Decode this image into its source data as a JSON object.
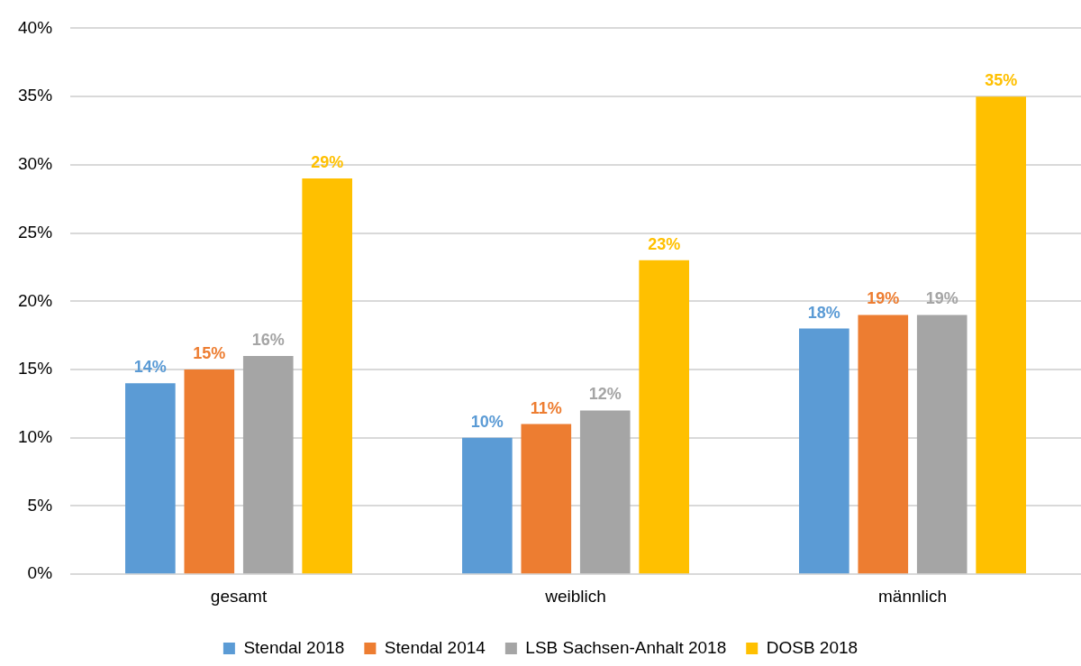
{
  "chart_data": {
    "type": "bar",
    "categories": [
      "gesamt",
      "weiblich",
      "männlich"
    ],
    "series": [
      {
        "name": "Stendal 2018",
        "color": "#5b9bd5",
        "values": [
          14,
          10,
          18
        ],
        "value_labels": [
          "14%",
          "10%",
          "18%"
        ]
      },
      {
        "name": "Stendal 2014",
        "color": "#ed7d31",
        "values": [
          15,
          11,
          19
        ],
        "value_labels": [
          "15%",
          "11%",
          "19%"
        ]
      },
      {
        "name": "LSB Sachsen-Anhalt 2018",
        "color": "#a5a5a5",
        "values": [
          16,
          12,
          19
        ],
        "value_labels": [
          "16%",
          "12%",
          "19%"
        ]
      },
      {
        "name": "DOSB 2018",
        "color": "#ffc000",
        "values": [
          29,
          23,
          35
        ],
        "value_labels": [
          "29%",
          "23%",
          "35%"
        ]
      }
    ],
    "ylim": [
      0,
      40
    ],
    "yticks": [
      {
        "value": 0,
        "label": "0%"
      },
      {
        "value": 5,
        "label": "5%"
      },
      {
        "value": 10,
        "label": "10%"
      },
      {
        "value": 15,
        "label": "15%"
      },
      {
        "value": 20,
        "label": "20%"
      },
      {
        "value": 25,
        "label": "25%"
      },
      {
        "value": 30,
        "label": "30%"
      },
      {
        "value": 35,
        "label": "35%"
      },
      {
        "value": 40,
        "label": "40%"
      }
    ],
    "grid": "y",
    "legend": "bottom"
  }
}
